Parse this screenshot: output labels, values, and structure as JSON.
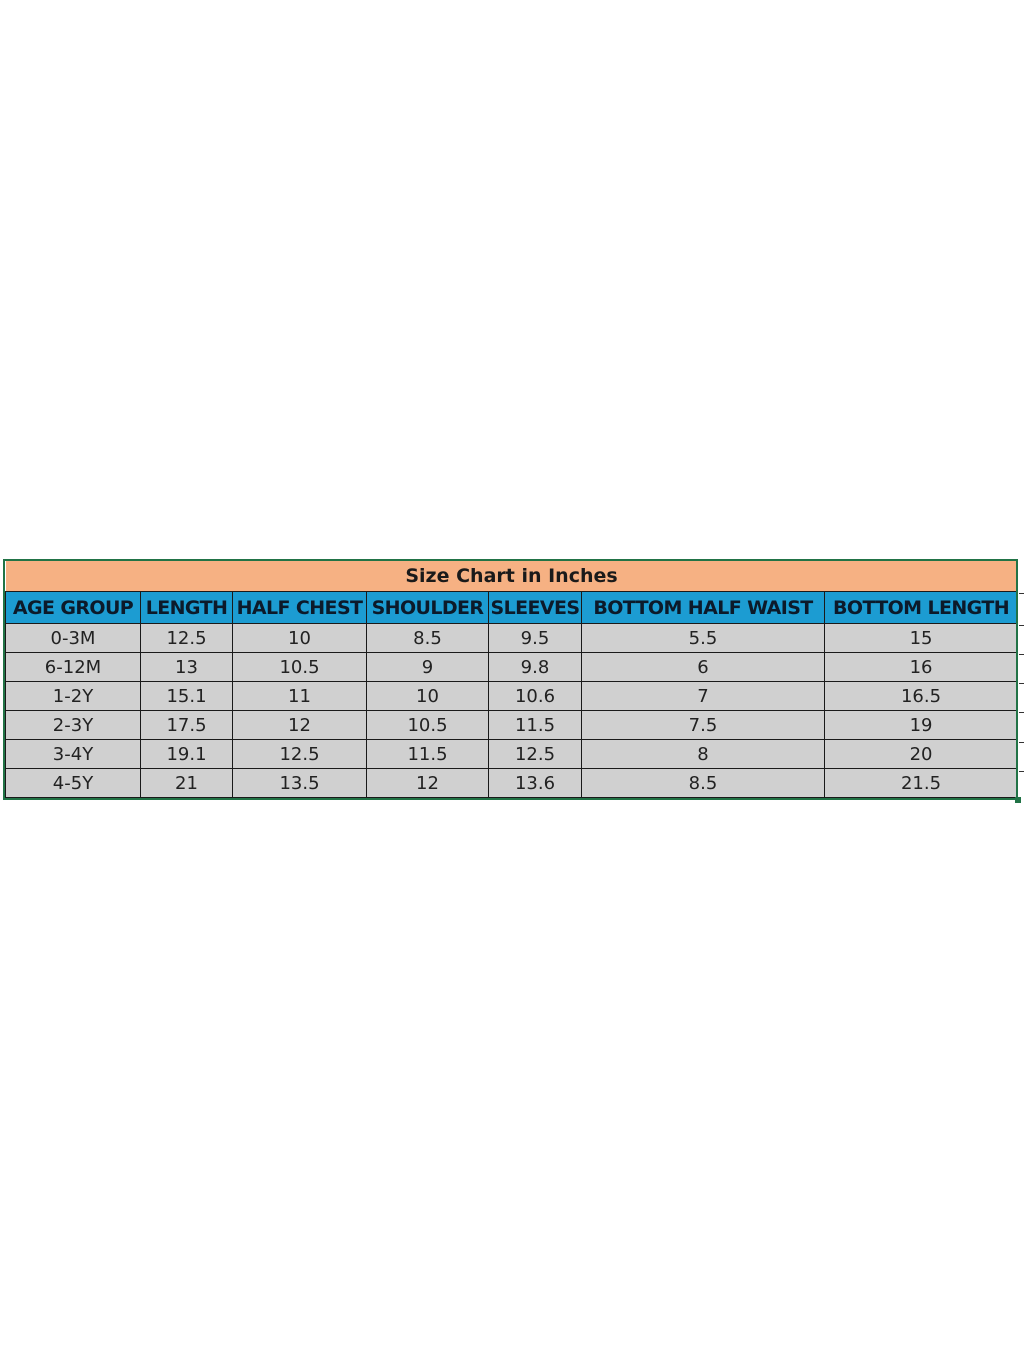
{
  "title": "Size Chart in Inches",
  "columns": [
    "AGE GROUP",
    "LENGTH",
    "HALF CHEST",
    "SHOULDER",
    "SLEEVES",
    "BOTTOM  HALF WAIST",
    "BOTTOM LENGTH"
  ],
  "rows": [
    [
      "0-3M",
      "12.5",
      "10",
      "8.5",
      "9.5",
      "5.5",
      "15"
    ],
    [
      "6-12M",
      "13",
      "10.5",
      "9",
      "9.8",
      "6",
      "16"
    ],
    [
      "1-2Y",
      "15.1",
      "11",
      "10",
      "10.6",
      "7",
      "16.5"
    ],
    [
      "2-3Y",
      "17.5",
      "12",
      "10.5",
      "11.5",
      "7.5",
      "19"
    ],
    [
      "3-4Y",
      "19.1",
      "12.5",
      "11.5",
      "12.5",
      "8",
      "20"
    ],
    [
      "4-5Y",
      "21",
      "13.5",
      "12",
      "13.6",
      "8.5",
      "21.5"
    ]
  ],
  "colors": {
    "title_bg": "#f6b183",
    "header_bg": "#1c9cd2",
    "cell_bg": "#d0d0d0",
    "selection": "#217346"
  }
}
